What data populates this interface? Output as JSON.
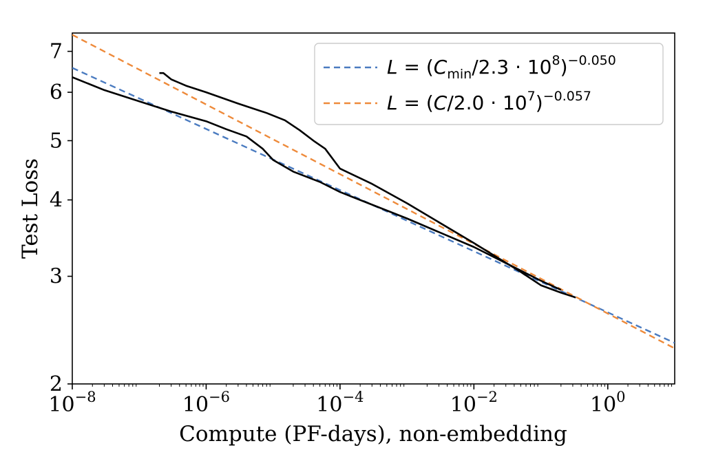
{
  "chart_data": {
    "type": "line",
    "xlabel": "Compute (PF-days), non-embedding",
    "ylabel": "Test Loss",
    "x_scale": "log",
    "y_scale": "log",
    "xlim": [
      1e-08,
      10
    ],
    "ylim": [
      2,
      7.5
    ],
    "x_ticks": [
      {
        "value": 1e-08,
        "base": "10",
        "exp": "−8"
      },
      {
        "value": 1e-06,
        "base": "10",
        "exp": "−6"
      },
      {
        "value": 0.0001,
        "base": "10",
        "exp": "−4"
      },
      {
        "value": 0.01,
        "base": "10",
        "exp": "−2"
      },
      {
        "value": 1,
        "base": "10",
        "exp": "0"
      }
    ],
    "y_ticks": [
      {
        "value": 2,
        "label": "2"
      },
      {
        "value": 3,
        "label": "3"
      },
      {
        "value": 4,
        "label": "4"
      },
      {
        "value": 5,
        "label": "5"
      },
      {
        "value": 6,
        "label": "6"
      },
      {
        "value": 7,
        "label": "7"
      }
    ],
    "grid": false,
    "legend_position": "top-right",
    "colors": {
      "fit_cmin": "#4a7bc0",
      "fit_c": "#ee8a3a",
      "data_curve": "#000000"
    },
    "fits": [
      {
        "id": "fit-cmin",
        "color": "#4a7bc0",
        "style": "dashed",
        "scale_const": 230000000.0,
        "exponent": -0.05,
        "legend": {
          "l": "L",
          "eq": " = (",
          "c": "C",
          "sub": "min",
          "mid": "/2.3 · 10",
          "exp8": "8",
          "close": ")",
          "sup": "−0.050"
        }
      },
      {
        "id": "fit-c",
        "color": "#ee8a3a",
        "style": "dashed",
        "scale_const": 20000000.0,
        "exponent": -0.057,
        "legend": {
          "l": "L",
          "eq": " = (",
          "c": "C",
          "mid": "/2.0 · 10",
          "exp7": "7",
          "close": ")",
          "sup": "−0.057"
        }
      }
    ],
    "series": [
      {
        "id": "cmin-envelope",
        "color": "#000000",
        "x": [
          1e-08,
          3e-08,
          1e-07,
          3e-07,
          1e-06,
          2e-06,
          4e-06,
          7e-06,
          1e-05,
          2e-05,
          5e-05,
          0.0001,
          0.001,
          0.01,
          0.1,
          0.2
        ],
        "y": [
          6.35,
          6.05,
          5.8,
          5.58,
          5.38,
          5.22,
          5.08,
          4.85,
          4.65,
          4.45,
          4.28,
          4.12,
          3.73,
          3.35,
          2.95,
          2.85
        ]
      },
      {
        "id": "c-envelope",
        "color": "#000000",
        "x": [
          2e-07,
          2.3e-07,
          3e-07,
          5e-07,
          1e-06,
          3e-06,
          8e-06,
          1.5e-05,
          2.5e-05,
          4e-05,
          6e-05,
          0.0001,
          0.0003,
          0.001,
          0.01,
          0.05,
          0.1,
          0.2,
          0.33
        ],
        "y": [
          6.45,
          6.45,
          6.3,
          6.15,
          6.0,
          5.75,
          5.55,
          5.4,
          5.2,
          5.0,
          4.85,
          4.5,
          4.25,
          3.95,
          3.4,
          3.05,
          2.9,
          2.82,
          2.77
        ]
      }
    ]
  }
}
